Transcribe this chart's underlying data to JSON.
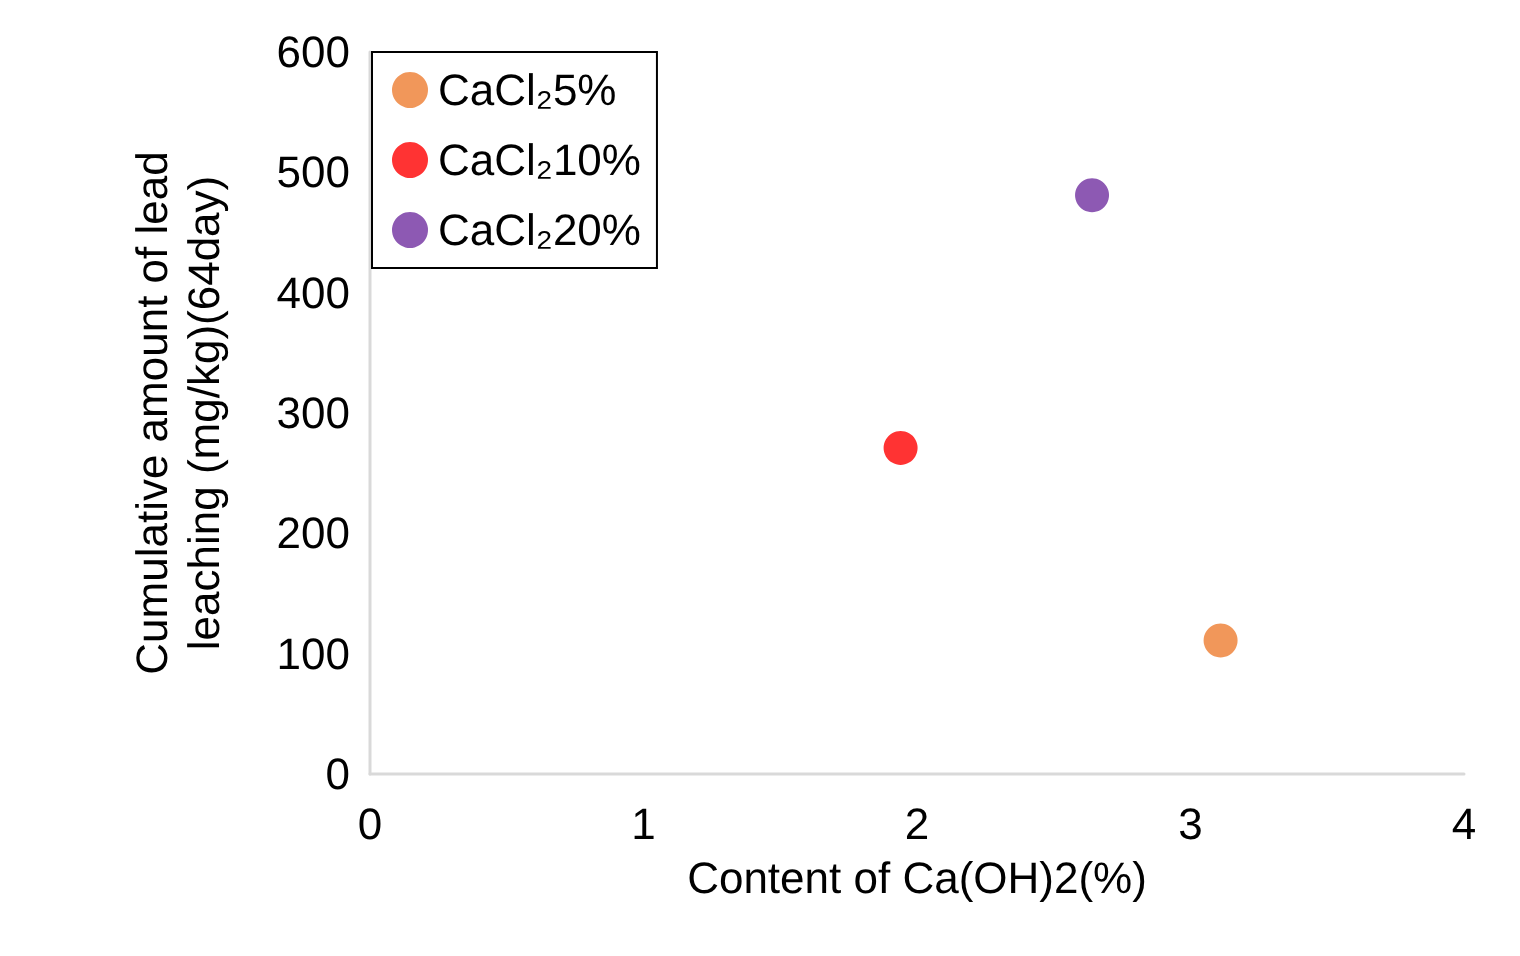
{
  "chart_data": {
    "type": "scatter",
    "xlabel": "Content of Ca(OH)2(%)",
    "ylabel": "Cumulative amount of lead\nleaching (mg/kg)(64day)",
    "series": [
      {
        "name": "CaCl₂5%",
        "color": "#ed7d31",
        "x": [
          3.11
        ],
        "values": [
          111
        ]
      },
      {
        "name": "CaCl₂10%",
        "color": "#ff0000",
        "x": [
          1.94
        ],
        "values": [
          271
        ]
      },
      {
        "name": "CaCl₂20%",
        "color": "#7030a0",
        "x": [
          2.64
        ],
        "values": [
          481
        ]
      }
    ],
    "xlim": [
      0,
      4
    ],
    "xticks": [
      0,
      1,
      2,
      3,
      4
    ],
    "ylim": [
      0,
      600
    ],
    "yticks": [
      0,
      100,
      200,
      300,
      400,
      500,
      600
    ],
    "grid": false,
    "legend": "top left",
    "marker": "circle"
  }
}
